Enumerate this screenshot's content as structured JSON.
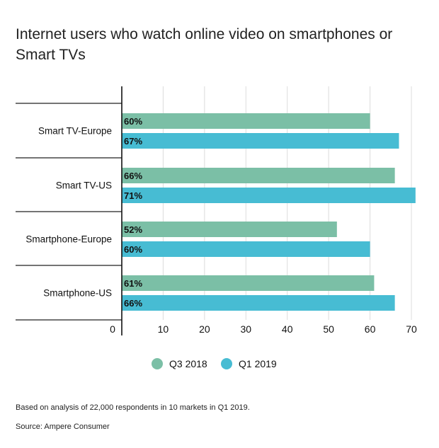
{
  "chart_data": {
    "type": "bar",
    "orientation": "horizontal",
    "title": "Internet users who watch online video on smartphones or Smart TVs",
    "categories": [
      "Smart TV-Europe",
      "Smart TV-US",
      "Smartphone-Europe",
      "Smartphone-US"
    ],
    "series": [
      {
        "name": "Q3 2018",
        "color": "#7bbfa6",
        "values": [
          60,
          66,
          52,
          61
        ],
        "labels": [
          "60%",
          "66%",
          "52%",
          "61%"
        ]
      },
      {
        "name": "Q1 2019",
        "color": "#47bcd3",
        "values": [
          67,
          71,
          60,
          66
        ],
        "labels": [
          "67%",
          "71%",
          "60%",
          "66%"
        ]
      }
    ],
    "xlim": [
      0,
      70
    ],
    "xticks": [
      0,
      10,
      20,
      30,
      40,
      50,
      60,
      70
    ],
    "xtick_labels": [
      "0",
      "10",
      "20",
      "30",
      "40",
      "50",
      "60",
      "70"
    ],
    "grid": true,
    "legend_position": "bottom-center"
  },
  "footnote": "Based on analysis of 22,000 respondents in 10 markets in Q1 2019.",
  "source": "Source: Ampere Consumer"
}
